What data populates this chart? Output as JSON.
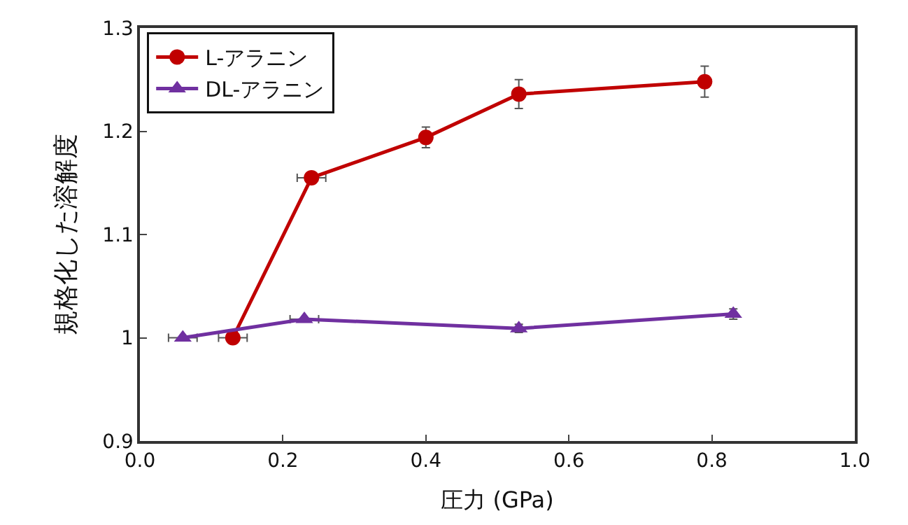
{
  "chart_data": {
    "type": "line",
    "xlabel": "圧力 (GPa)",
    "ylabel": "規格化した溶解度",
    "xlim": [
      0,
      1
    ],
    "xticks": [
      {
        "value": 0,
        "label": "0.0"
      },
      0.2,
      0.4,
      0.6,
      0.8,
      {
        "value": 1,
        "label": "1.0"
      }
    ],
    "ylim": [
      0.9,
      1.3
    ],
    "yticks": [
      0.9,
      1,
      1.1,
      1.2,
      1.3
    ],
    "legend": "top left",
    "series": [
      {
        "name": "L-アラニン",
        "color": "#c00000",
        "marker": "circle",
        "x": [
          0.13,
          0.24,
          0.4,
          0.53,
          0.79
        ],
        "values": [
          1.0,
          1.155,
          1.194,
          1.236,
          1.248
        ],
        "errors": [
          null,
          null,
          0.01,
          0.014,
          0.015
        ],
        "xerrors": [
          0.02,
          0.02,
          null,
          null,
          null
        ]
      },
      {
        "name": "DL-アラニン",
        "color": "#7030a0",
        "marker": "triangle",
        "x": [
          0.06,
          0.23,
          0.53,
          0.83
        ],
        "values": [
          1.0,
          1.018,
          1.009,
          1.023
        ],
        "errors": [
          null,
          null,
          0.004,
          0.005
        ],
        "xerrors": [
          0.02,
          0.02,
          null,
          null
        ]
      }
    ]
  }
}
